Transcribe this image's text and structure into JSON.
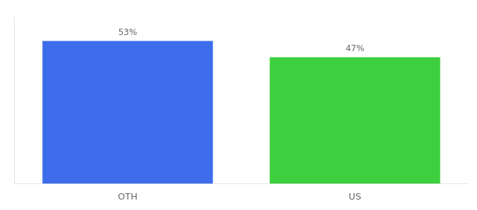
{
  "chart_data": {
    "type": "bar",
    "categories": [
      "OTH",
      "US"
    ],
    "values": [
      53,
      47
    ],
    "value_labels": [
      "53%",
      "47%"
    ],
    "colors": [
      "#3d6dea",
      "#3ecf3e"
    ],
    "ylim": [
      0,
      62
    ],
    "grid": false,
    "data_labels": true,
    "tick_labels": "x"
  }
}
